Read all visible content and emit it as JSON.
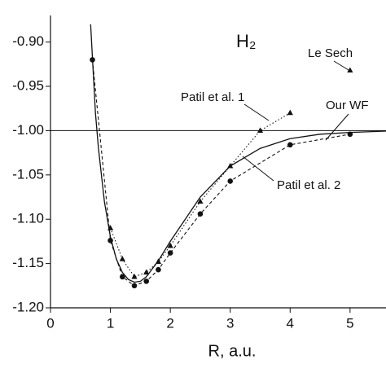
{
  "chart_data": {
    "type": "line",
    "title": "H₂",
    "x_label": "R, a.u.",
    "xlim": [
      0,
      5.6
    ],
    "xticks": [
      0,
      1,
      2,
      3,
      4,
      5
    ],
    "ylim": [
      -1.2,
      -0.87
    ],
    "yticks": [
      {
        "value": -1.2,
        "label": "-1.20"
      },
      {
        "value": -1.15,
        "label": "-1.15"
      },
      {
        "value": -1.1,
        "label": "-1.10"
      },
      {
        "value": -1.05,
        "label": "-1.05"
      },
      {
        "value": -1.0,
        "label": "-1.00"
      },
      {
        "value": -0.95,
        "label": "-0.95"
      },
      {
        "value": -0.9,
        "label": "-0.90"
      }
    ],
    "reference_line": -1.0,
    "series": [
      {
        "name": "Our WF",
        "color": "#111111",
        "line": "solid",
        "marker": "none",
        "x": [
          0.67,
          0.75,
          0.8,
          0.9,
          1.0,
          1.1,
          1.2,
          1.3,
          1.4,
          1.5,
          1.6,
          1.8,
          2.0,
          2.5,
          3.0,
          3.5,
          4.0,
          4.5,
          5.0,
          5.6
        ],
        "values": [
          -0.88,
          -0.98,
          -1.02,
          -1.08,
          -1.12,
          -1.145,
          -1.16,
          -1.168,
          -1.171,
          -1.17,
          -1.165,
          -1.147,
          -1.125,
          -1.075,
          -1.04,
          -1.02,
          -1.009,
          -1.004,
          -1.002,
          -1.0005
        ]
      },
      {
        "name": "Patil et al. 1",
        "color": "#111111",
        "line": "dotted",
        "marker": "triangle",
        "x": [
          1.0,
          1.2,
          1.4,
          1.6,
          1.8,
          2.0,
          2.5,
          3.0,
          3.5,
          4.0
        ],
        "values": [
          -1.11,
          -1.145,
          -1.165,
          -1.16,
          -1.148,
          -1.13,
          -1.08,
          -1.04,
          -1.0,
          -0.98
        ]
      },
      {
        "name": "Patil et al. 2",
        "color": "#111111",
        "line": "dashed",
        "marker": "circle",
        "x": [
          0.7,
          1.0,
          1.2,
          1.4,
          1.6,
          1.8,
          2.0,
          2.5,
          3.0,
          4.0,
          5.0
        ],
        "values": [
          -0.92,
          -1.124,
          -1.165,
          -1.175,
          -1.17,
          -1.157,
          -1.138,
          -1.094,
          -1.057,
          -1.016,
          -1.004
        ]
      },
      {
        "name": "Le Sech",
        "color": "#111111",
        "line": "none",
        "marker": "triangle",
        "x": [
          5.0
        ],
        "values": [
          -0.932
        ]
      }
    ]
  }
}
